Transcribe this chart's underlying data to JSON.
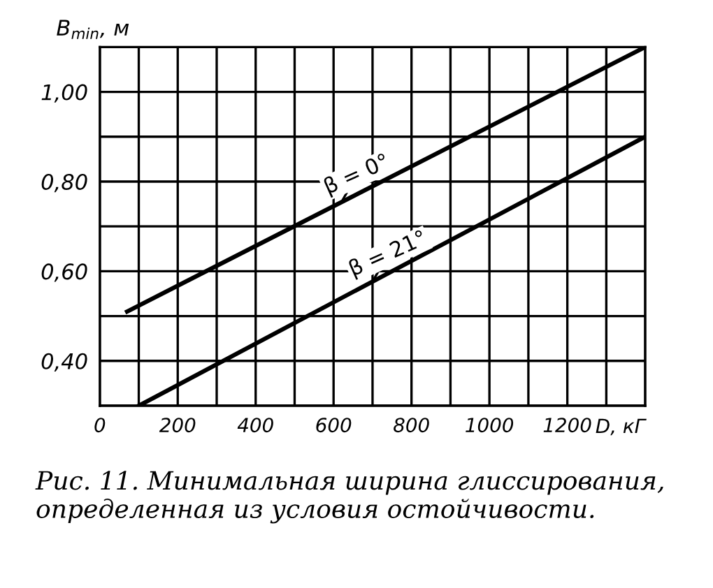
{
  "chart_data": {
    "type": "line",
    "xlabel": "D, кГ",
    "ylabel": "B$_{min}$, м",
    "xlim": [
      0,
      1400
    ],
    "ylim": [
      0.3,
      1.1
    ],
    "xticks": [
      0,
      {
        "value": 100,
        "label": null
      },
      200,
      {
        "value": 300,
        "label": null
      },
      400,
      {
        "value": 500,
        "label": null
      },
      600,
      {
        "value": 700,
        "label": null
      },
      800,
      {
        "value": 900,
        "label": null
      },
      1000,
      {
        "value": 1100,
        "label": null
      },
      1200,
      {
        "value": 1300,
        "label": null
      },
      {
        "value": 1400,
        "label": null
      }
    ],
    "yticks": [
      {
        "value": 0.3,
        "label": null
      },
      {
        "value": 0.4,
        "label": "0,40"
      },
      {
        "value": 0.5,
        "label": null
      },
      {
        "value": 0.6,
        "label": "0,60"
      },
      {
        "value": 0.7,
        "label": null
      },
      {
        "value": 0.8,
        "label": "0,80"
      },
      {
        "value": 0.9,
        "label": null
      },
      {
        "value": 1.0,
        "label": "1,00"
      },
      {
        "value": 1.1,
        "label": null
      }
    ],
    "grid": true,
    "legend": false,
    "marker": "none",
    "line_style": "solid",
    "series": [
      {
        "color": "#000000",
        "x": [
          70,
          1400
        ],
        "values": [
          0.51,
          1.1
        ]
      },
      {
        "color": "#000000",
        "x": [
          100,
          1400
        ],
        "values": [
          0.3,
          0.9
        ]
      }
    ],
    "annotations": [
      {
        "text": "β = 0°",
        "x": 620,
        "y": 0.754
      },
      {
        "text": "β = 21°",
        "x": 700,
        "y": 0.577
      },
      "Рис. 11. Минимальная ширина глиссирования, определенная из условия остойчивости."
    ]
  }
}
